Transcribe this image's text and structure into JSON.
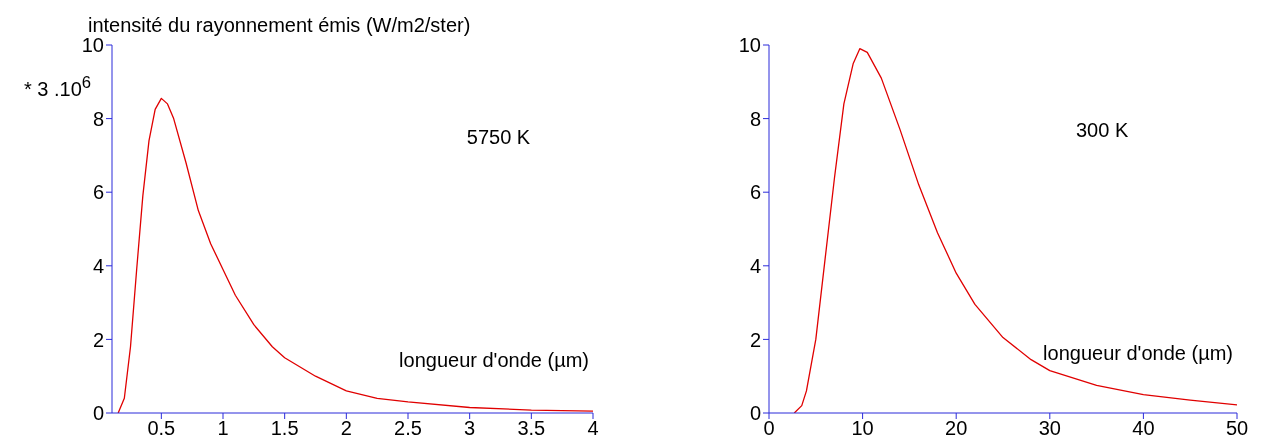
{
  "chart_data": [
    {
      "type": "line",
      "title": "intensité du rayonnement émis (W/m2/ster)",
      "ylabel": "* 3 .10$^{6}$",
      "xlabel": "longueur d'onde (µm)",
      "annotations": [
        "5750 K"
      ],
      "x": [
        0.15,
        0.2,
        0.25,
        0.3,
        0.35,
        0.4,
        0.45,
        0.5,
        0.55,
        0.6,
        0.7,
        0.8,
        0.9,
        1.0,
        1.1,
        1.25,
        1.4,
        1.5,
        1.75,
        2.0,
        2.25,
        2.5,
        3.0,
        3.5,
        4.0
      ],
      "series": [
        {
          "color": "#e00000",
          "values": [
            0,
            0.4,
            1.8,
            3.9,
            5.9,
            7.4,
            8.25,
            8.55,
            8.4,
            8.0,
            6.8,
            5.5,
            4.6,
            3.9,
            3.2,
            2.4,
            1.8,
            1.5,
            1.0,
            0.6,
            0.4,
            0.3,
            0.15,
            0.08,
            0.05
          ]
        }
      ],
      "xlim": [
        0.1,
        4
      ],
      "xticks": [
        0.5,
        1,
        1.5,
        2,
        2.5,
        3,
        3.5,
        4
      ],
      "ylim": [
        0,
        10
      ],
      "yticks": [
        0,
        2,
        4,
        6,
        8,
        10
      ],
      "grid": false,
      "legend": false,
      "marker": "none",
      "line_style": "solid"
    },
    {
      "type": "line",
      "xlabel": "longueur d'onde (µm)",
      "annotations": [
        "300 K"
      ],
      "x": [
        2.7,
        3.5,
        4,
        5,
        6,
        7,
        8,
        9,
        9.7,
        10.5,
        12,
        14,
        16,
        18,
        20,
        22,
        25,
        28,
        30,
        35,
        40,
        45,
        50
      ],
      "series": [
        {
          "color": "#e00000",
          "values": [
            0,
            0.2,
            0.6,
            2.0,
            4.2,
            6.4,
            8.4,
            9.5,
            9.9,
            9.8,
            9.1,
            7.7,
            6.2,
            4.9,
            3.8,
            2.95,
            2.05,
            1.45,
            1.15,
            0.75,
            0.5,
            0.35,
            0.22
          ]
        }
      ],
      "xlim": [
        0,
        50
      ],
      "xticks": [
        0,
        10,
        20,
        30,
        40,
        50
      ],
      "ylim": [
        0,
        10
      ],
      "yticks": [
        0,
        2,
        4,
        6,
        8,
        10
      ],
      "grid": false,
      "legend": false,
      "marker": "none",
      "line_style": "solid"
    }
  ]
}
